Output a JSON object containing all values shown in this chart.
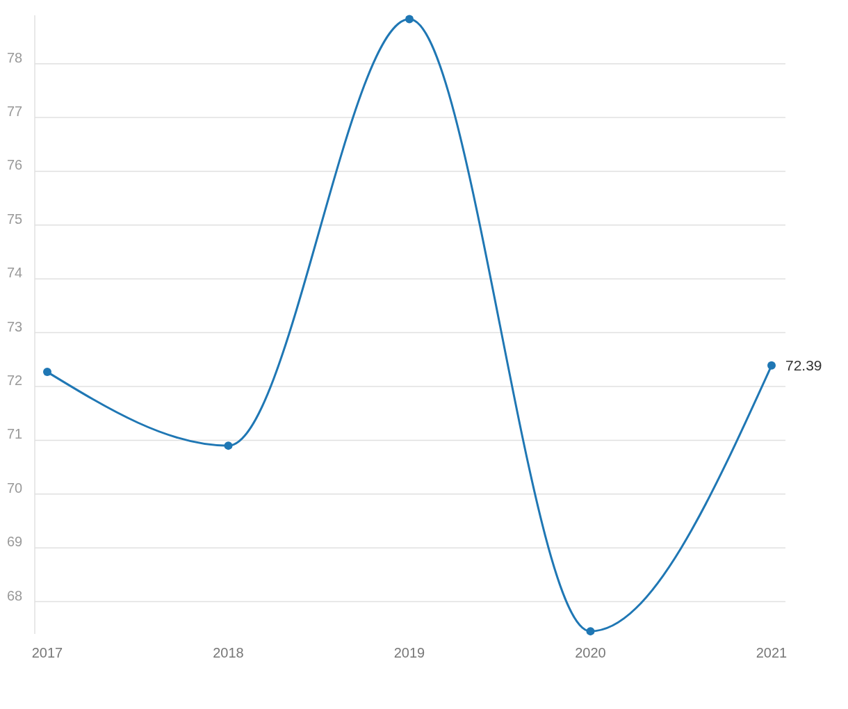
{
  "chart_data": {
    "type": "line",
    "categories": [
      "2017",
      "2018",
      "2019",
      "2020",
      "2021"
    ],
    "series": [
      {
        "color": "#1f77b4",
        "values": [
          72.27,
          70.9,
          78.83,
          67.45,
          72.39
        ],
        "value_labels": [
          null,
          null,
          null,
          null,
          "72.39"
        ]
      }
    ],
    "ylim": [
      67.4,
      78.9
    ],
    "yticks": [
      68,
      69,
      70,
      71,
      72,
      73,
      74,
      75,
      76,
      77,
      78
    ],
    "grid": "y",
    "marker": "circle",
    "line_style": "solid"
  }
}
